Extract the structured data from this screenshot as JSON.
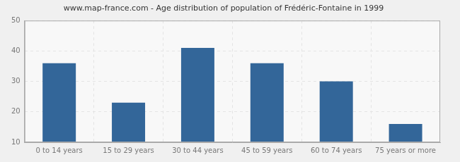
{
  "chart_data": {
    "type": "bar",
    "title": "www.map-france.com - Age distribution of population of Frédéric-Fontaine in 1999",
    "categories": [
      "0 to 14 years",
      "15 to 29 years",
      "30 to 44 years",
      "45 to 59 years",
      "60 to 74 years",
      "75 years or more"
    ],
    "values": [
      36,
      23,
      41,
      36,
      30,
      16
    ],
    "color": "#336699",
    "ylim": [
      10,
      50
    ],
    "yticks": [
      10,
      20,
      30,
      40,
      50
    ],
    "grid": true
  }
}
